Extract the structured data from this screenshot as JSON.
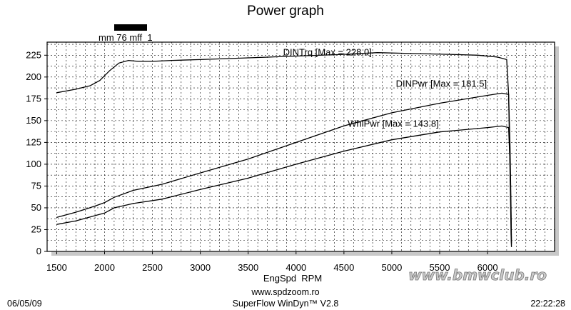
{
  "chart_data": {
    "type": "line",
    "title": "Power graph",
    "legend": {
      "name": "mm 76 mff_1",
      "swatch_color": "#000000",
      "placement": "top-left"
    },
    "xlabel": "EngSpd  RPM",
    "ylabel": "",
    "xlim": [
      1400,
      6700
    ],
    "ylim": [
      0,
      240
    ],
    "xticks": [
      1500,
      2000,
      2500,
      3000,
      3500,
      4000,
      4500,
      5000,
      5500,
      6000
    ],
    "yticks": [
      0,
      25,
      50,
      75,
      100,
      125,
      150,
      175,
      200,
      225
    ],
    "grid": true,
    "series": [
      {
        "name": "DINTrq",
        "annotation": "DINTrq [Max = 228.0]",
        "color": "#000000",
        "points": [
          [
            1500,
            182
          ],
          [
            1700,
            186
          ],
          [
            1850,
            190
          ],
          [
            1950,
            196
          ],
          [
            2050,
            207
          ],
          [
            2150,
            216
          ],
          [
            2250,
            219
          ],
          [
            2350,
            218
          ],
          [
            2500,
            218
          ],
          [
            2700,
            219
          ],
          [
            3000,
            220
          ],
          [
            3500,
            222
          ],
          [
            4000,
            224
          ],
          [
            4500,
            226
          ],
          [
            4850,
            228
          ],
          [
            5200,
            227
          ],
          [
            5600,
            226
          ],
          [
            5900,
            225
          ],
          [
            6100,
            223
          ],
          [
            6200,
            220
          ],
          [
            6220,
            180
          ],
          [
            6230,
            120
          ],
          [
            6240,
            60
          ],
          [
            6245,
            20
          ],
          [
            6250,
            5
          ]
        ]
      },
      {
        "name": "DINPwr",
        "annotation": "DINPwr [Max = 181.5]",
        "color": "#000000",
        "points": [
          [
            1500,
            39
          ],
          [
            1700,
            45
          ],
          [
            1900,
            52
          ],
          [
            2000,
            56
          ],
          [
            2100,
            62
          ],
          [
            2300,
            70
          ],
          [
            2600,
            77
          ],
          [
            3000,
            90
          ],
          [
            3500,
            106
          ],
          [
            4000,
            125
          ],
          [
            4500,
            144
          ],
          [
            5000,
            159
          ],
          [
            5500,
            170
          ],
          [
            6000,
            179
          ],
          [
            6150,
            181.5
          ],
          [
            6220,
            180
          ],
          [
            6235,
            120
          ],
          [
            6245,
            50
          ],
          [
            6250,
            10
          ]
        ]
      },
      {
        "name": "WhlPwr",
        "annotation": "WhlPwr [Max = 143.8]",
        "color": "#000000",
        "points": [
          [
            1500,
            31
          ],
          [
            1700,
            35
          ],
          [
            1900,
            41
          ],
          [
            2000,
            44
          ],
          [
            2100,
            50
          ],
          [
            2300,
            55
          ],
          [
            2600,
            60
          ],
          [
            3000,
            71
          ],
          [
            3500,
            84
          ],
          [
            4000,
            100
          ],
          [
            4500,
            115
          ],
          [
            5000,
            128
          ],
          [
            5500,
            137
          ],
          [
            6000,
            142
          ],
          [
            6150,
            143.8
          ],
          [
            6220,
            142
          ],
          [
            6235,
            100
          ],
          [
            6245,
            40
          ],
          [
            6250,
            8
          ]
        ]
      }
    ]
  },
  "footer": {
    "date": "06/05/09",
    "website": "www.spdzoom.ro",
    "software": "SuperFlow WinDyn™ V2.8",
    "time": "22:22:28"
  },
  "watermark": {
    "text": "www.bmwclub.ro"
  }
}
